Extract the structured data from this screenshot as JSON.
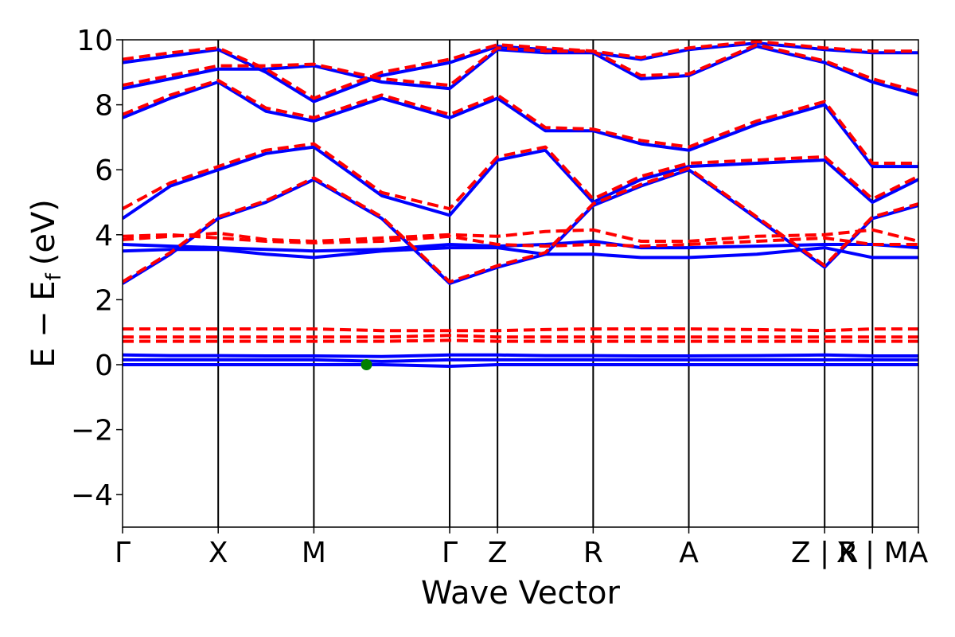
{
  "chart_data": {
    "type": "line",
    "xlabel": "Wave Vector",
    "ylabel_main": "E − E",
    "ylabel_sub": "f",
    "ylabel_unit": "(eV)",
    "ylim": [
      -5,
      10
    ],
    "yticks": [
      {
        "value": -4,
        "label": "−4"
      },
      {
        "value": -2,
        "label": "−2"
      },
      {
        "value": 0,
        "label": "0"
      },
      {
        "value": 2,
        "label": "2"
      },
      {
        "value": 4,
        "label": "4"
      },
      {
        "value": 6,
        "label": "6"
      },
      {
        "value": 8,
        "label": "8"
      },
      {
        "value": 10,
        "label": "10"
      }
    ],
    "xlim": [
      0,
      8.32
    ],
    "kpoints": [
      {
        "x": 0.0,
        "label": "Γ"
      },
      {
        "x": 1.0,
        "label": "X"
      },
      {
        "x": 2.0,
        "label": "M"
      },
      {
        "x": 3.42,
        "label": "Γ"
      },
      {
        "x": 3.92,
        "label": "Z"
      },
      {
        "x": 4.92,
        "label": "R"
      },
      {
        "x": 5.92,
        "label": "A"
      },
      {
        "x": 7.34,
        "label": "Z | R"
      },
      {
        "x": 7.84,
        "label": "X | M"
      },
      {
        "x": 8.32,
        "label": "A"
      }
    ],
    "colors": {
      "spin_up": "#0000ff",
      "spin_down": "#ff0000",
      "marker": "#008000",
      "axis": "#000000"
    },
    "series": [
      {
        "style": "solid",
        "x": [
          0.0,
          0.5,
          1.0,
          1.5,
          2.0,
          2.71,
          3.42,
          3.92,
          4.42,
          4.92,
          5.42,
          5.92,
          6.63,
          7.34,
          7.84,
          8.32
        ],
        "bands": [
          [
            0.0,
            0.0,
            0.0,
            0.0,
            0.0,
            0.0,
            -0.05,
            0.0,
            0.0,
            0.0,
            0.0,
            0.0,
            0.0,
            0.0,
            0.0,
            0.0
          ],
          [
            0.15,
            0.15,
            0.15,
            0.15,
            0.15,
            0.1,
            0.15,
            0.15,
            0.15,
            0.15,
            0.15,
            0.15,
            0.15,
            0.15,
            0.15,
            0.15
          ],
          [
            0.3,
            0.28,
            0.28,
            0.27,
            0.27,
            0.25,
            0.3,
            0.3,
            0.28,
            0.28,
            0.27,
            0.27,
            0.28,
            0.3,
            0.27,
            0.27
          ],
          [
            2.5,
            3.4,
            4.5,
            5.0,
            5.7,
            4.5,
            2.5,
            3.0,
            3.4,
            4.9,
            5.5,
            6.0,
            4.5,
            3.0,
            4.5,
            4.9
          ],
          [
            3.5,
            3.55,
            3.55,
            3.4,
            3.3,
            3.5,
            3.6,
            3.6,
            3.4,
            3.4,
            3.3,
            3.3,
            3.4,
            3.6,
            3.3,
            3.3
          ],
          [
            3.7,
            3.65,
            3.6,
            3.55,
            3.5,
            3.55,
            3.7,
            3.65,
            3.7,
            3.8,
            3.6,
            3.6,
            3.65,
            3.7,
            3.7,
            3.6
          ],
          [
            4.5,
            5.5,
            6.0,
            6.5,
            6.7,
            5.2,
            4.6,
            6.3,
            6.6,
            5.0,
            5.7,
            6.1,
            6.2,
            6.3,
            5.0,
            5.7
          ],
          [
            7.6,
            8.2,
            8.7,
            7.8,
            7.5,
            8.2,
            7.6,
            8.2,
            7.2,
            7.2,
            6.8,
            6.6,
            7.4,
            8.0,
            6.1,
            6.1
          ],
          [
            8.5,
            8.8,
            9.1,
            9.1,
            9.2,
            8.7,
            8.5,
            9.7,
            9.6,
            9.6,
            8.8,
            8.9,
            9.8,
            9.3,
            8.7,
            8.3
          ],
          [
            9.3,
            9.5,
            9.7,
            9.0,
            8.1,
            8.9,
            9.3,
            9.8,
            9.7,
            9.6,
            9.4,
            9.7,
            9.9,
            9.7,
            9.6,
            9.6
          ]
        ]
      },
      {
        "style": "dashed",
        "x": [
          0.0,
          0.5,
          1.0,
          1.5,
          2.0,
          2.71,
          3.42,
          3.92,
          4.42,
          4.92,
          5.42,
          5.92,
          6.63,
          7.34,
          7.84,
          8.32
        ],
        "bands": [
          [
            0.72,
            0.72,
            0.72,
            0.72,
            0.72,
            0.72,
            0.75,
            0.72,
            0.72,
            0.72,
            0.72,
            0.72,
            0.72,
            0.72,
            0.72,
            0.72
          ],
          [
            0.85,
            0.85,
            0.85,
            0.85,
            0.85,
            0.85,
            0.9,
            0.85,
            0.85,
            0.85,
            0.85,
            0.85,
            0.85,
            0.85,
            0.85,
            0.85
          ],
          [
            1.1,
            1.1,
            1.1,
            1.1,
            1.1,
            1.05,
            1.05,
            1.05,
            1.08,
            1.1,
            1.1,
            1.1,
            1.08,
            1.05,
            1.1,
            1.1
          ],
          [
            2.55,
            3.45,
            4.55,
            5.05,
            5.75,
            4.55,
            2.55,
            3.05,
            3.45,
            4.95,
            5.55,
            6.05,
            4.55,
            3.05,
            4.55,
            4.95
          ],
          [
            3.85,
            3.95,
            4.05,
            3.85,
            3.8,
            3.9,
            4.0,
            3.95,
            4.1,
            4.15,
            3.8,
            3.8,
            3.95,
            4.0,
            4.15,
            3.8
          ],
          [
            3.95,
            4.0,
            3.9,
            3.8,
            3.75,
            3.8,
            3.95,
            3.7,
            3.65,
            3.7,
            3.65,
            3.7,
            3.8,
            3.9,
            3.7,
            3.7
          ],
          [
            4.8,
            5.6,
            6.1,
            6.6,
            6.8,
            5.3,
            4.8,
            6.4,
            6.7,
            5.1,
            5.8,
            6.2,
            6.3,
            6.4,
            5.1,
            5.8
          ],
          [
            7.7,
            8.3,
            8.75,
            7.9,
            7.6,
            8.3,
            7.7,
            8.3,
            7.3,
            7.25,
            6.9,
            6.7,
            7.5,
            8.1,
            6.2,
            6.2
          ],
          [
            8.6,
            8.9,
            9.2,
            9.2,
            9.25,
            8.8,
            8.6,
            9.75,
            9.65,
            9.65,
            8.9,
            8.95,
            9.85,
            9.35,
            8.8,
            8.4
          ],
          [
            9.4,
            9.6,
            9.75,
            9.1,
            8.2,
            9.0,
            9.4,
            9.85,
            9.75,
            9.65,
            9.45,
            9.75,
            9.95,
            9.75,
            9.65,
            9.65
          ]
        ]
      }
    ],
    "marker": {
      "x": 2.55,
      "y": 0.0
    }
  }
}
